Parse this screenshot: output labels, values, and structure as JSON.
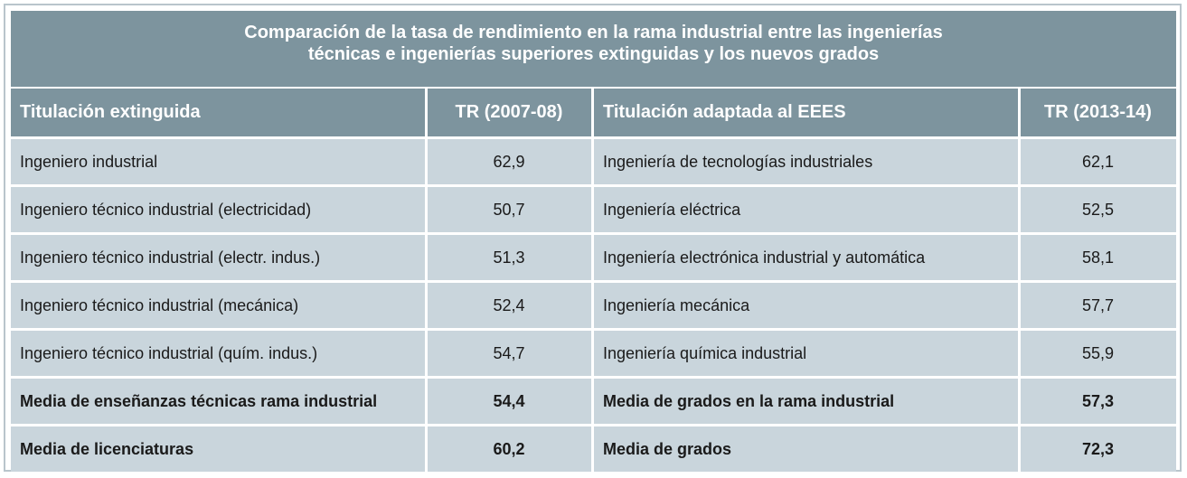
{
  "chart_data": {
    "type": "table",
    "title_lines": [
      "Comparación de la tasa de rendimiento en la rama industrial entre las ingenierías",
      "técnicas e ingenierías superiores extinguidas y los nuevos grados"
    ],
    "columns": [
      "Titulación extinguida",
      "TR (2007-08)",
      "Titulación adaptada al EEES",
      "TR (2013-14)"
    ],
    "rows": [
      [
        "Ingeniero industrial",
        "62,9",
        "Ingeniería de tecnologías industriales",
        "62,1"
      ],
      [
        "Ingeniero técnico industrial (electricidad)",
        "50,7",
        "Ingeniería eléctrica",
        "52,5"
      ],
      [
        "Ingeniero técnico industrial (electr. indus.)",
        "51,3",
        "Ingeniería electrónica industrial y automática",
        "58,1"
      ],
      [
        "Ingeniero técnico industrial (mecánica)",
        "52,4",
        "Ingeniería mecánica",
        "57,7"
      ],
      [
        "Ingeniero técnico industrial (quím. indus.)",
        "54,7",
        "Ingeniería química industrial",
        "55,9"
      ],
      [
        "Media de enseñanzas técnicas rama industrial",
        "54,4",
        "Media de grados en la rama industrial",
        "57,3"
      ],
      [
        "Media de licenciaturas",
        "60,2",
        "Media de grados",
        "72,3"
      ]
    ],
    "bold_rows": [
      5,
      6
    ],
    "colors": {
      "header_bg": "#7d949e",
      "cell_bg": "#c9d5dc",
      "header_text": "#ffffff",
      "cell_text": "#1a1a1a"
    }
  }
}
